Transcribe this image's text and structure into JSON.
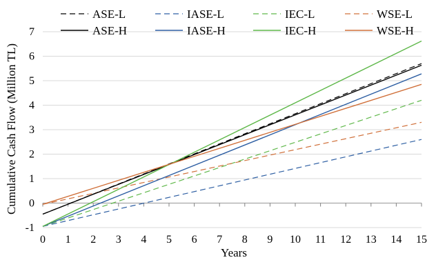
{
  "chart_data": {
    "type": "line",
    "title": "",
    "xlabel": "Years",
    "ylabel": "Cumulative Cash Flow (Million TL)",
    "xlim": [
      0,
      15
    ],
    "ylim": [
      -1,
      7
    ],
    "xticks": [
      "0",
      "1",
      "2",
      "3",
      "4",
      "5",
      "6",
      "7",
      "8",
      "9",
      "10",
      "11",
      "12",
      "13",
      "14",
      "15"
    ],
    "yticks": [
      "-1",
      "0",
      "1",
      "2",
      "3",
      "4",
      "5",
      "6",
      "7"
    ],
    "grid": "horizontal",
    "legend_position": "top",
    "series": [
      {
        "name": "ASE-L",
        "color": "#000000",
        "dash": "dashed",
        "x": [
          0,
          15
        ],
        "y": [
          -0.45,
          5.7
        ]
      },
      {
        "name": "IASE-L",
        "color": "#2e5fa3",
        "dash": "dashed",
        "x": [
          0,
          15
        ],
        "y": [
          -0.95,
          2.6
        ]
      },
      {
        "name": "IEC-L",
        "color": "#5fb84a",
        "dash": "dashed",
        "x": [
          0,
          15
        ],
        "y": [
          -0.95,
          4.2
        ]
      },
      {
        "name": "WSE-L",
        "color": "#d0703a",
        "dash": "dashed",
        "x": [
          0,
          15
        ],
        "y": [
          -0.05,
          3.3
        ]
      },
      {
        "name": "ASE-H",
        "color": "#000000",
        "dash": "solid",
        "x": [
          0,
          15
        ],
        "y": [
          -0.45,
          5.63
        ]
      },
      {
        "name": "IASE-H",
        "color": "#2e5fa3",
        "dash": "solid",
        "x": [
          0,
          15
        ],
        "y": [
          -0.95,
          5.28
        ]
      },
      {
        "name": "IEC-H",
        "color": "#5fb84a",
        "dash": "solid",
        "x": [
          0,
          15
        ],
        "y": [
          -0.95,
          6.62
        ]
      },
      {
        "name": "WSE-H",
        "color": "#d0703a",
        "dash": "solid",
        "x": [
          0,
          15
        ],
        "y": [
          -0.05,
          4.85
        ]
      }
    ],
    "colors": {
      "grid": "#d9d9d9",
      "zero_line": "#a6a6a6",
      "axis": "#808080"
    }
  }
}
